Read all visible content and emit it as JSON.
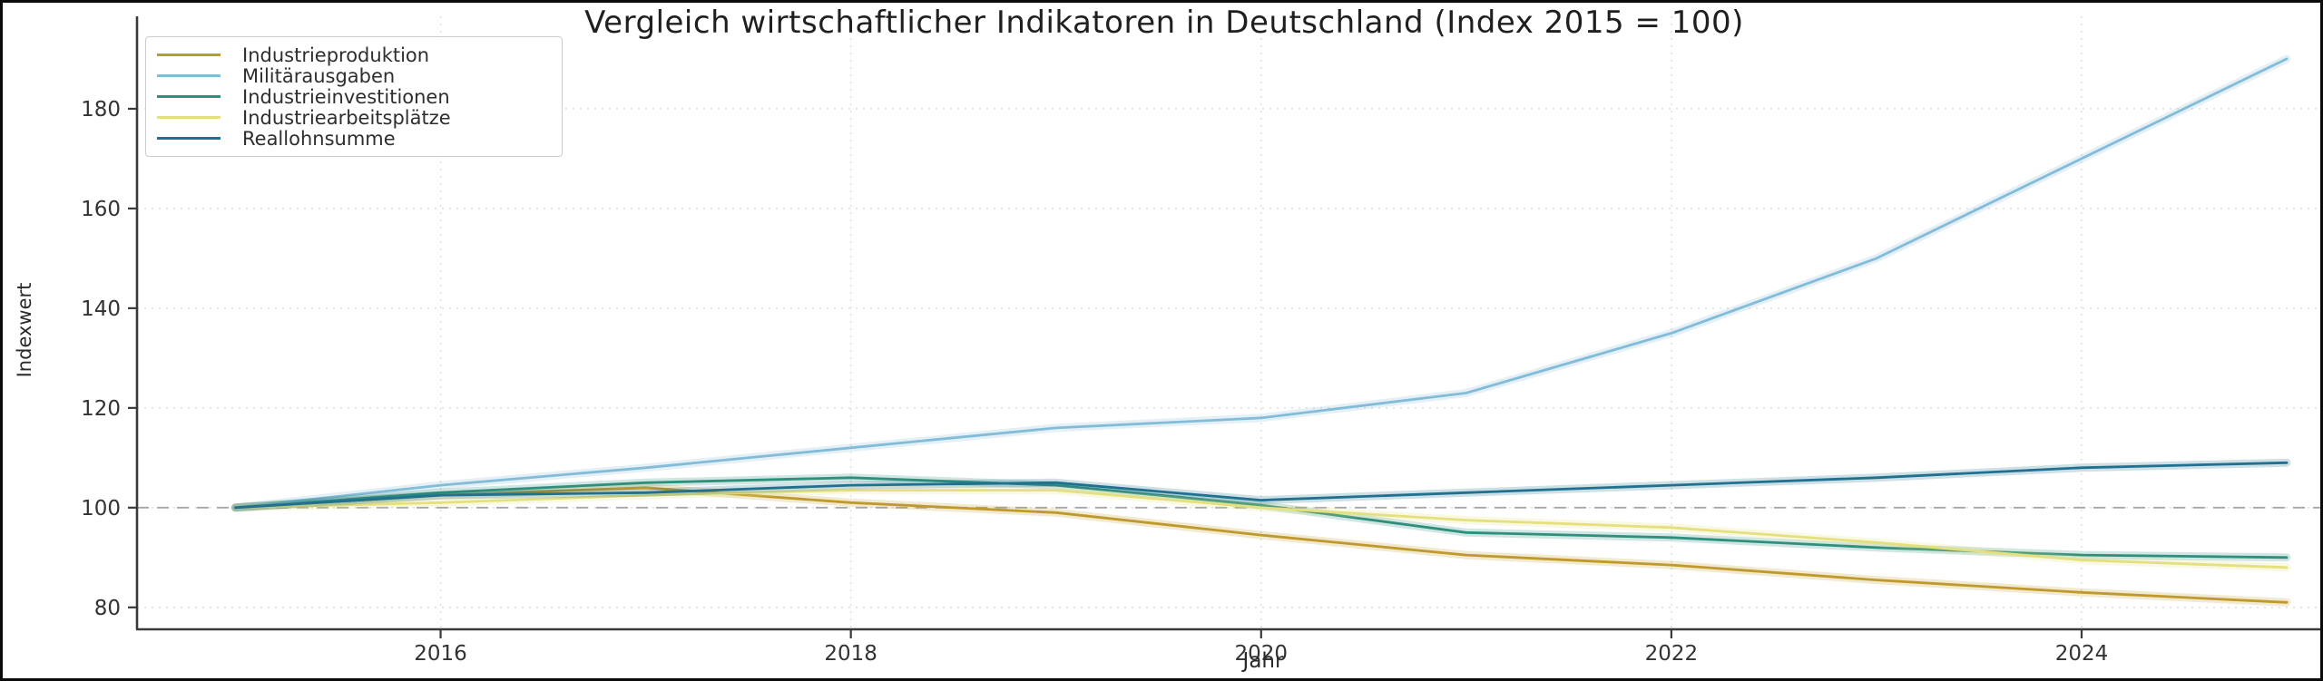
{
  "window": {
    "title": "Vergleich wirtschaftlicher Indikatoren in Deutschland (Index 2015 = 100)"
  },
  "chart_data": {
    "type": "line",
    "title": "Vergleich wirtschaftlicher Indikatoren in Deutschland (Index 2015 = 100)",
    "xlabel": "Jahr",
    "ylabel": "Indexwert",
    "x": [
      2015,
      2016,
      2017,
      2018,
      2019,
      2020,
      2021,
      2022,
      2023,
      2024,
      2025
    ],
    "x_ticks": [
      2016,
      2018,
      2020,
      2022,
      2024
    ],
    "y_ticks": [
      80,
      100,
      120,
      140,
      160,
      180
    ],
    "xlim": [
      2014.52,
      2025.19
    ],
    "ylim": [
      75.6,
      194.9
    ],
    "grid": true,
    "grid_style": "dotted",
    "reference_line": {
      "y": 100,
      "style": "dashed",
      "color": "#a6a6a6"
    },
    "legend_position": "upper-left",
    "series": [
      {
        "name": "Industrieproduktion",
        "color": "#bf992b",
        "values": [
          100,
          102.5,
          104.0,
          101.0,
          99.0,
          94.5,
          90.5,
          88.5,
          85.5,
          83.0,
          81.0
        ]
      },
      {
        "name": "Militärausgaben",
        "color": "#82bcd8",
        "values": [
          100,
          104.5,
          108.0,
          112.0,
          116.0,
          118.0,
          123.0,
          135.0,
          150.0,
          170.0,
          190.0
        ]
      },
      {
        "name": "Industrieinvestitionen",
        "color": "#2e8f7c",
        "values": [
          100,
          103.0,
          105.0,
          106.0,
          104.5,
          100.5,
          95.0,
          94.0,
          92.0,
          90.5,
          90.0
        ]
      },
      {
        "name": "Industriearbeitsplätze",
        "color": "#e4e07e",
        "values": [
          100,
          101.0,
          102.5,
          103.5,
          103.5,
          100.0,
          97.5,
          96.0,
          93.0,
          89.5,
          88.0
        ]
      },
      {
        "name": "Reallohnsumme",
        "color": "#20708f",
        "values": [
          100,
          102.5,
          103.0,
          104.5,
          105.0,
          101.5,
          103.0,
          104.5,
          106.0,
          108.0,
          109.0
        ]
      }
    ],
    "axis_colors": {
      "spine": "#3a3a3a",
      "tick_label": "#333333",
      "grid": "#d9d9d9"
    }
  }
}
